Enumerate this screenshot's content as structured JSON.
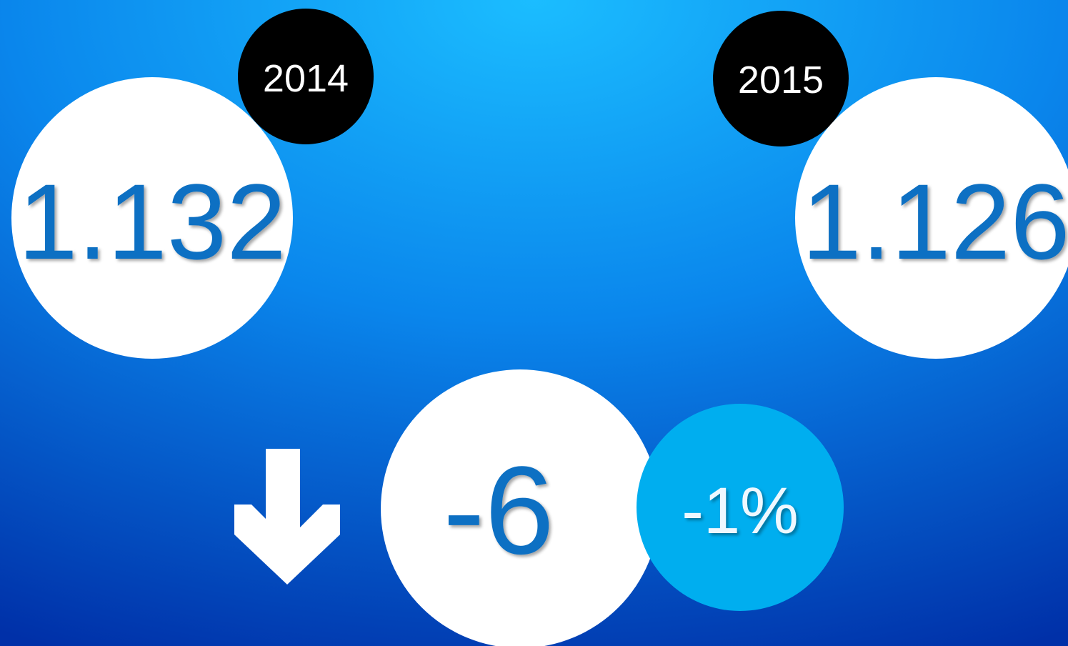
{
  "items": [
    {
      "year": "2014",
      "value": "1.132"
    },
    {
      "year": "2015",
      "value": "1.126"
    }
  ],
  "change": {
    "value": "-6",
    "percent": "-1%"
  }
}
